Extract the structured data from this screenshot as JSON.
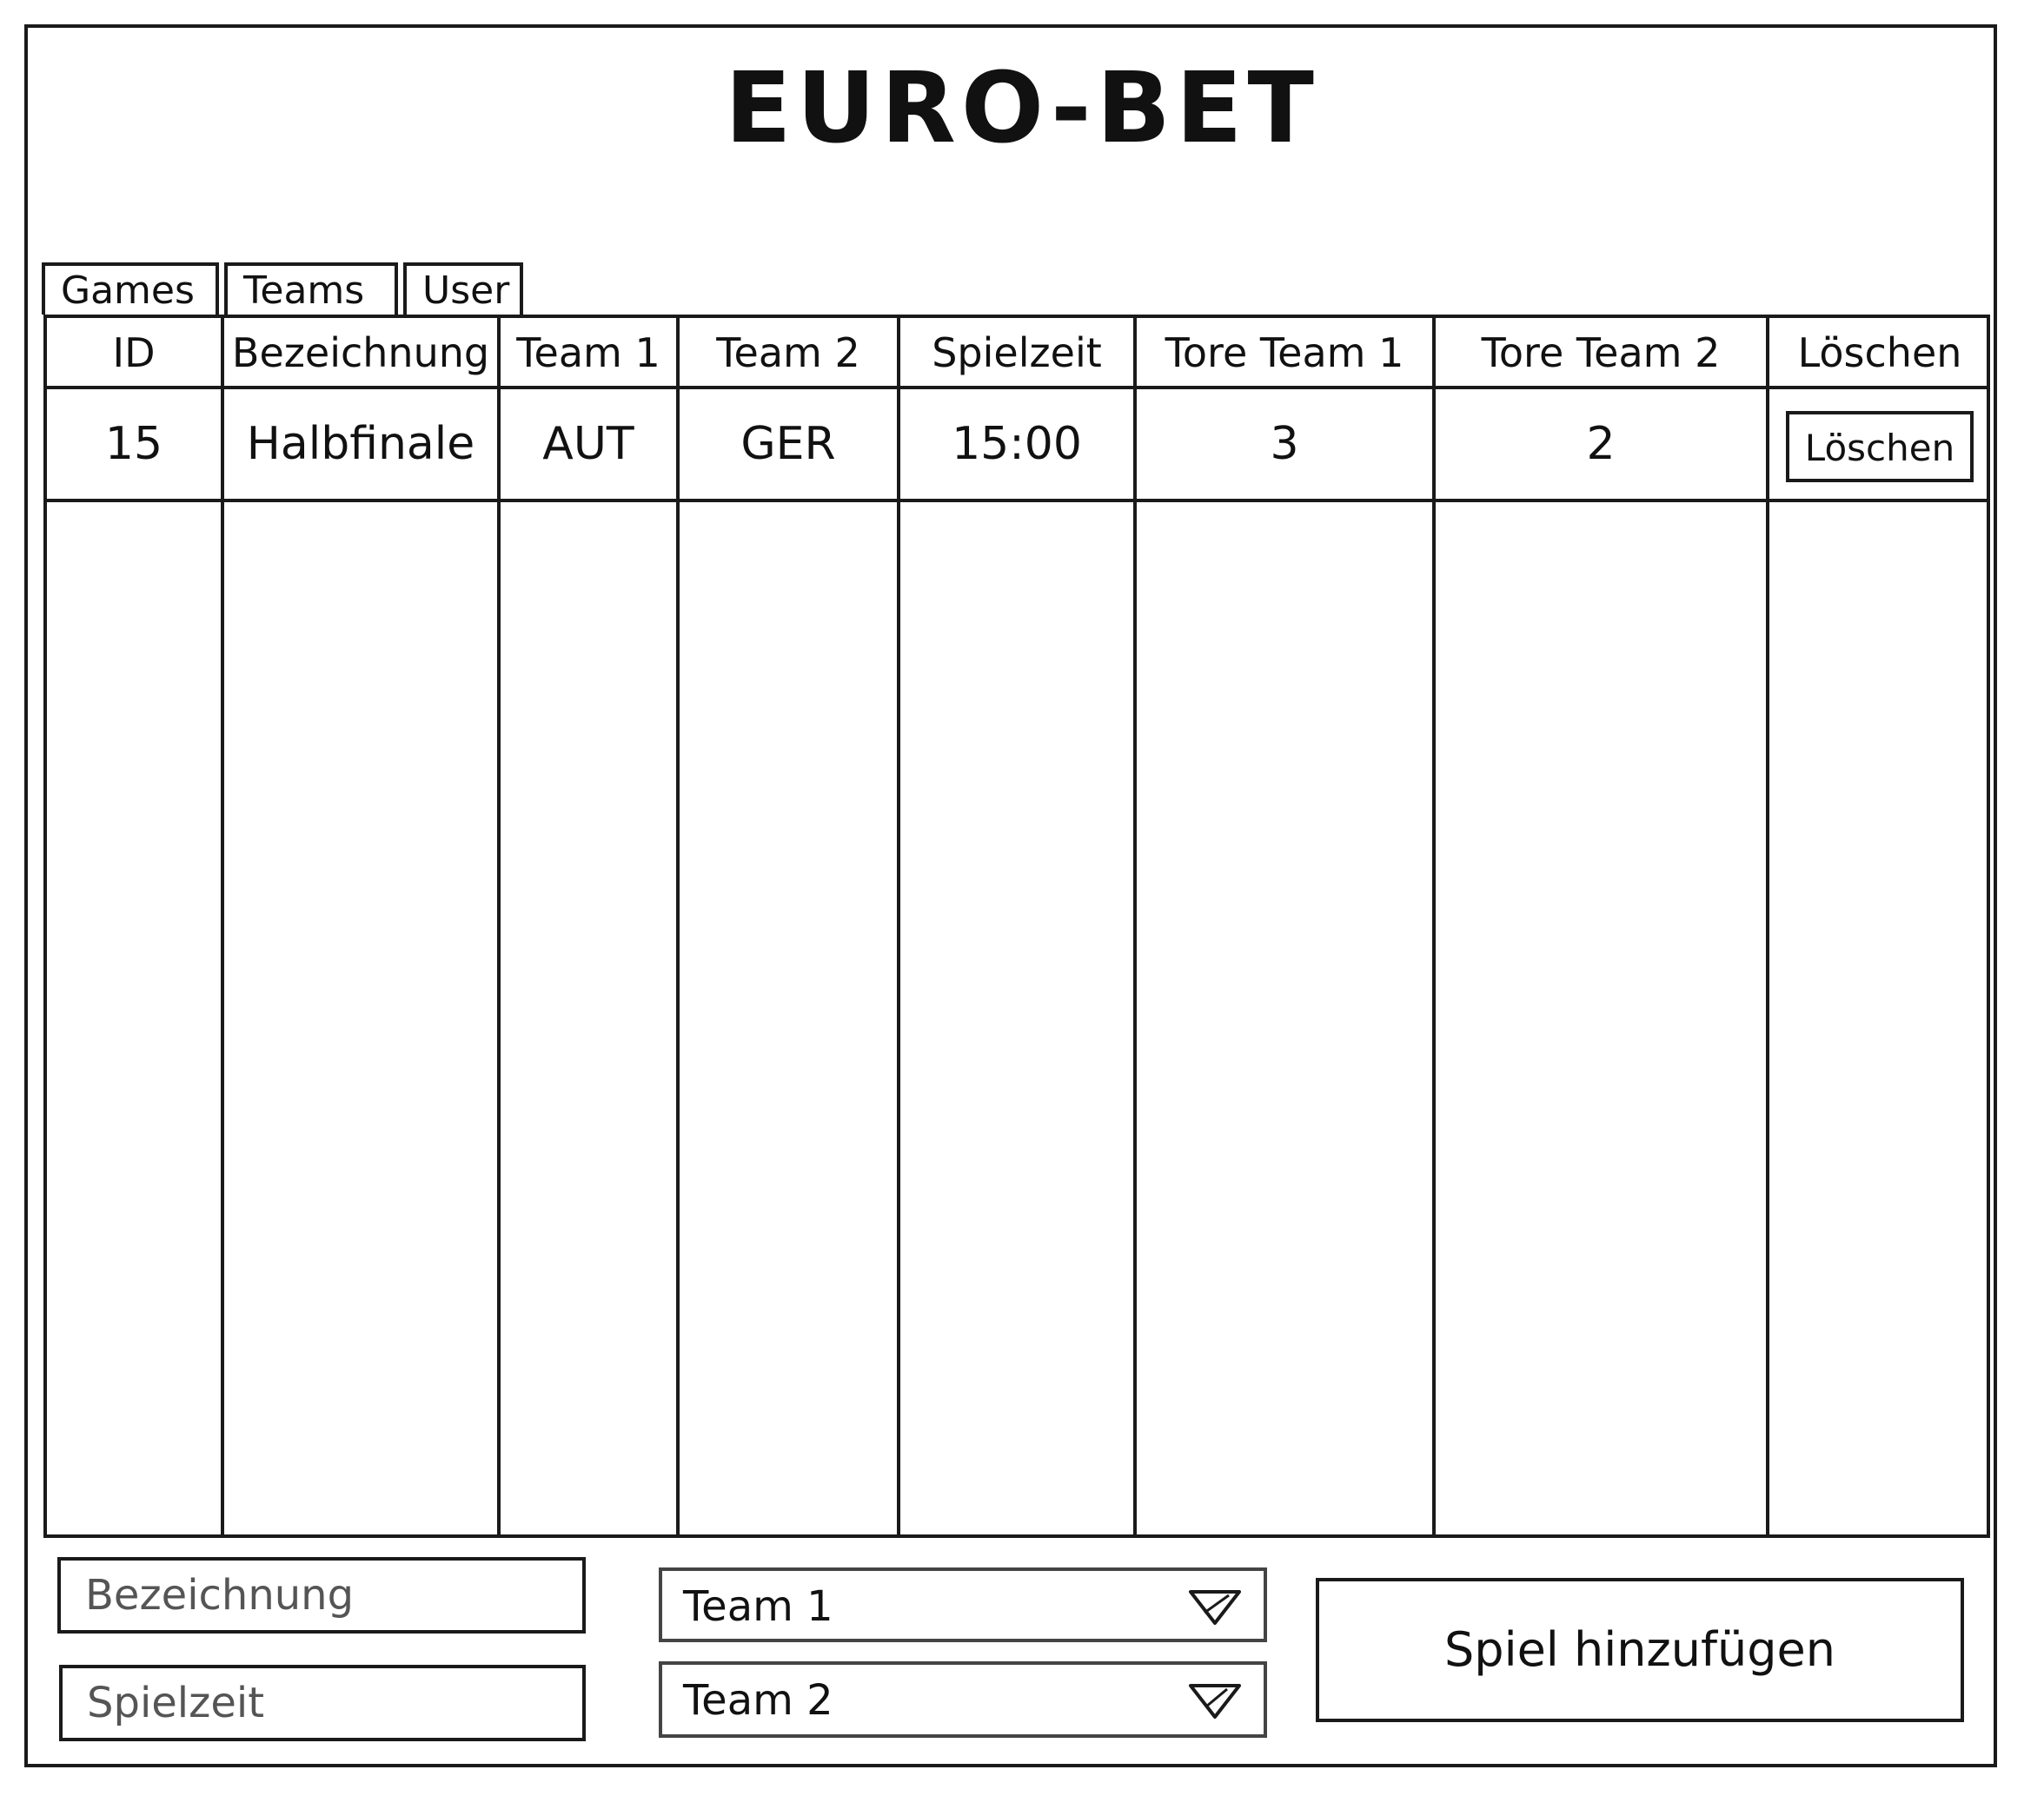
{
  "app": {
    "title": "EURO-BET"
  },
  "tabs": [
    {
      "label": "Games",
      "selected": true
    },
    {
      "label": "Teams",
      "selected": false
    },
    {
      "label": "User",
      "selected": false
    }
  ],
  "table": {
    "columns": [
      "ID",
      "Bezeichnung",
      "Team 1",
      "Team 2",
      "Spielzeit",
      "Tore Team 1",
      "Tore Team 2",
      "Löschen"
    ],
    "rows": [
      {
        "id": "15",
        "bezeichnung": "Halbfinale",
        "team1": "AUT",
        "team2": "GER",
        "spielzeit": "15:00",
        "tore_team1": "3",
        "tore_team2": "2",
        "delete_label": "Löschen"
      }
    ]
  },
  "form": {
    "bezeichnung": {
      "value": "",
      "placeholder": "Bezeichnung"
    },
    "spielzeit": {
      "value": "",
      "placeholder": "Spielzeit"
    },
    "team1_select": {
      "selected": "Team 1"
    },
    "team2_select": {
      "selected": "Team 2"
    },
    "submit_label": "Spiel hinzufügen"
  }
}
